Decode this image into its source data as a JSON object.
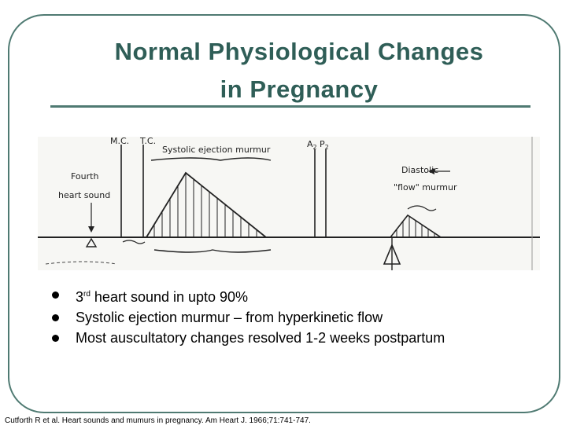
{
  "slide": {
    "title_line1": "Normal Physiological Changes",
    "title_line2": "in Pregnancy",
    "figure": {
      "label_mc": "M.C.",
      "label_tc": "T.C.",
      "label_systolic": "Systolic ejection murmur",
      "label_a2": "A",
      "label_a2_sub": "2",
      "label_p2": "P",
      "label_p2_sub": "2",
      "label_fourth_1": "Fourth",
      "label_fourth_2": "heart sound",
      "label_diastolic_1": "Diastolic",
      "label_diastolic_2": "\"flow\" murmur"
    },
    "bullets": [
      {
        "text_pre": "3",
        "sup": "rd",
        "text_post": " heart sound in upto 90%"
      },
      {
        "text": "Systolic ejection murmur – from hyperkinetic flow"
      },
      {
        "text": "Most auscultatory changes resolved 1-2 weeks postpartum"
      }
    ],
    "citation": "Cutforth R et al. Heart sounds and mumurs in pregnancy. Am Heart J. 1966;71:741-747."
  }
}
